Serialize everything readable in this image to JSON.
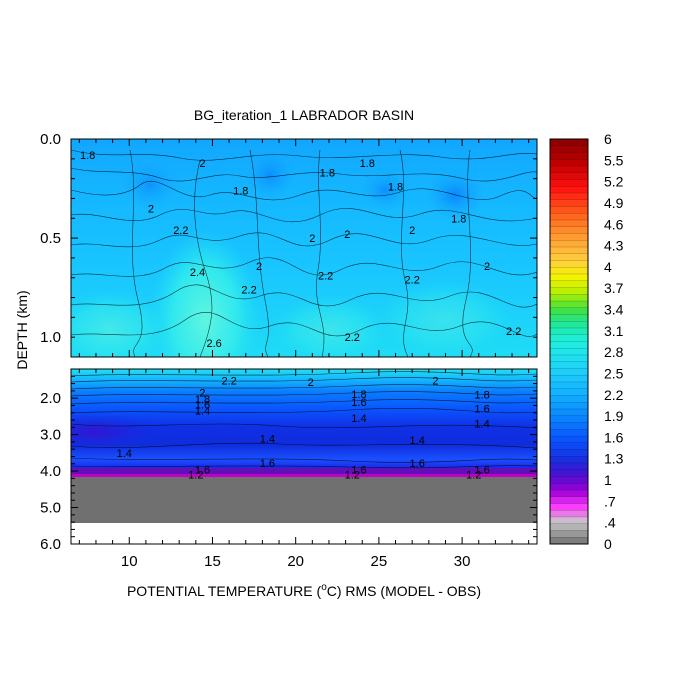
{
  "chart_data": {
    "type": "heatmap",
    "title": "BG_iteration_1 LABRADOR BASIN",
    "xlabel_prefix": "POTENTIAL TEMPERATURE (",
    "xlabel_sup": "o",
    "xlabel_suffix": "C) RMS (MODEL - OBS)",
    "ylabel": "DEPTH (km)",
    "xlim": [
      6.5,
      34.5
    ],
    "x_ticks": [
      10,
      15,
      20,
      25,
      30
    ],
    "upper_panel": {
      "ylim": [
        0.0,
        1.1
      ],
      "y_ticks": [
        "0.0",
        "0.5",
        "1.0"
      ],
      "y_tick_values": [
        0.0,
        0.5,
        1.0
      ]
    },
    "lower_panel": {
      "ylim": [
        1.2,
        6.0
      ],
      "y_ticks": [
        "2.0",
        "3.0",
        "4.0",
        "5.0",
        "6.0"
      ],
      "y_tick_values": [
        2.0,
        3.0,
        4.0,
        5.0,
        6.0
      ],
      "bottom_fill_depth": 4.1,
      "bottom_fill_end": 5.4
    },
    "colorbar": {
      "labels": [
        "6",
        "5.5",
        "5.2",
        "4.9",
        "4.6",
        "4.3",
        "4",
        "3.7",
        "3.4",
        "3.1",
        "2.8",
        "2.5",
        "2.2",
        "1.9",
        "1.6",
        "1.3",
        "1",
        ".7",
        ".4",
        "0"
      ]
    },
    "contour_labels_upper": [
      {
        "text": "1.8",
        "x": 7.5,
        "y": 0.08
      },
      {
        "text": "2",
        "x": 14.4,
        "y": 0.12
      },
      {
        "text": "1.8",
        "x": 21.9,
        "y": 0.17
      },
      {
        "text": "1.8",
        "x": 24.3,
        "y": 0.12
      },
      {
        "text": "1.8",
        "x": 16.7,
        "y": 0.26
      },
      {
        "text": "1.8",
        "x": 26.0,
        "y": 0.24
      },
      {
        "text": "2",
        "x": 11.3,
        "y": 0.35
      },
      {
        "text": "1.8",
        "x": 29.8,
        "y": 0.4
      },
      {
        "text": "2.2",
        "x": 13.1,
        "y": 0.46
      },
      {
        "text": "2",
        "x": 23.1,
        "y": 0.48
      },
      {
        "text": "2",
        "x": 27.0,
        "y": 0.46
      },
      {
        "text": "2",
        "x": 21.0,
        "y": 0.5
      },
      {
        "text": "2",
        "x": 17.8,
        "y": 0.64
      },
      {
        "text": "2.4",
        "x": 14.1,
        "y": 0.67
      },
      {
        "text": "2.2",
        "x": 21.8,
        "y": 0.69
      },
      {
        "text": "2.2",
        "x": 27.0,
        "y": 0.71
      },
      {
        "text": "2",
        "x": 31.5,
        "y": 0.64
      },
      {
        "text": "2.2",
        "x": 17.2,
        "y": 0.76
      },
      {
        "text": "2.2",
        "x": 33.1,
        "y": 0.97
      },
      {
        "text": "2.2",
        "x": 23.4,
        "y": 1.0
      },
      {
        "text": "2.6",
        "x": 15.1,
        "y": 1.03
      }
    ],
    "contour_labels_lower": [
      {
        "text": "2.2",
        "x": 16.0,
        "y": 1.52
      },
      {
        "text": "2",
        "x": 20.9,
        "y": 1.55
      },
      {
        "text": "2",
        "x": 28.4,
        "y": 1.52
      },
      {
        "text": "2",
        "x": 14.4,
        "y": 1.85
      },
      {
        "text": "1.8",
        "x": 14.4,
        "y": 2.02
      },
      {
        "text": "1.6",
        "x": 14.4,
        "y": 2.18
      },
      {
        "text": "1.4",
        "x": 14.4,
        "y": 2.34
      },
      {
        "text": "1.8",
        "x": 23.8,
        "y": 1.88
      },
      {
        "text": "1.6",
        "x": 23.8,
        "y": 2.1
      },
      {
        "text": "1.4",
        "x": 23.8,
        "y": 2.55
      },
      {
        "text": "1.8",
        "x": 31.2,
        "y": 1.9
      },
      {
        "text": "1.6",
        "x": 31.2,
        "y": 2.28
      },
      {
        "text": "1.4",
        "x": 31.2,
        "y": 2.7
      },
      {
        "text": "1.4",
        "x": 18.3,
        "y": 3.1
      },
      {
        "text": "1.4",
        "x": 27.3,
        "y": 3.15
      },
      {
        "text": "1.4",
        "x": 9.7,
        "y": 3.5
      },
      {
        "text": "1.6",
        "x": 18.3,
        "y": 3.78
      },
      {
        "text": "1.6",
        "x": 27.3,
        "y": 3.78
      },
      {
        "text": "1.6",
        "x": 14.4,
        "y": 3.95
      },
      {
        "text": "1.6",
        "x": 23.8,
        "y": 3.95
      },
      {
        "text": "1.6",
        "x": 31.2,
        "y": 3.95
      },
      {
        "text": "1.2",
        "x": 14.0,
        "y": 4.1
      },
      {
        "text": "1.2",
        "x": 23.4,
        "y": 4.1
      },
      {
        "text": "1.2",
        "x": 30.7,
        "y": 4.1
      }
    ]
  }
}
